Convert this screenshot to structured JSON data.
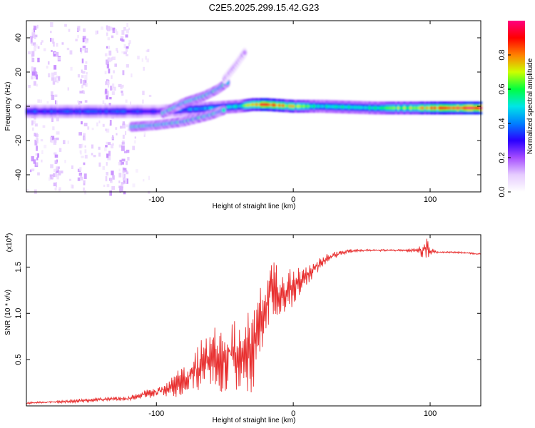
{
  "title": "C2E5.2025.299.15.42.G23",
  "colorbar": {
    "label": "Normalized spectral amplitude",
    "ticks": [
      0.0,
      0.2,
      0.4,
      0.6,
      0.8
    ],
    "tick_labels": [
      "0.0",
      "0.2",
      "0.4",
      "0.6",
      "0.8"
    ],
    "stops": [
      "#ffffff",
      "#e6ccff",
      "#a64dff",
      "#2a00ff",
      "#0080ff",
      "#00e6e6",
      "#00ff40",
      "#ccff00",
      "#ff8000",
      "#ff0000",
      "#ff0080"
    ]
  },
  "chart_data": [
    {
      "type": "heatmap",
      "name": "spectrogram",
      "title": "C2E5.2025.299.15.42.G23",
      "xlabel": "Height of straight line (km)",
      "ylabel": "Frequency (Hz)",
      "xlim": [
        -195,
        137
      ],
      "ylim": [
        -50,
        50
      ],
      "xticks": [
        -100,
        0,
        100
      ],
      "xtick_labels": [
        "-100",
        "0",
        "100"
      ],
      "yticks": [
        -40,
        -20,
        0,
        20,
        40
      ],
      "ytick_labels": [
        "-40",
        "-20",
        "0",
        "20",
        "40"
      ],
      "main_band": {
        "x": [
          -195,
          -120,
          -100,
          -80,
          -60,
          -40,
          -30,
          -20,
          0,
          20,
          60,
          100,
          137
        ],
        "y": [
          -3,
          -3,
          -3,
          -2,
          -1,
          0,
          1,
          1,
          0,
          0,
          -1,
          -1,
          -1
        ],
        "amplitude": [
          0.35,
          0.35,
          0.3,
          0.4,
          0.45,
          0.5,
          0.75,
          0.9,
          0.7,
          0.5,
          0.55,
          0.8,
          0.97
        ]
      },
      "branches": [
        {
          "x": [
            -118,
            -100,
            -80,
            -60,
            -50
          ],
          "y": [
            -12,
            -11,
            -9,
            -5,
            -2
          ],
          "amplitude": 0.45
        },
        {
          "x": [
            -95,
            -80,
            -65,
            -55,
            -48
          ],
          "y": [
            -4,
            2,
            6,
            10,
            14
          ],
          "amplitude": 0.45
        },
        {
          "x": [
            -50,
            -42,
            -35
          ],
          "y": [
            16,
            24,
            32
          ],
          "amplitude": 0.15
        }
      ],
      "noise_columns_x": [
        -190,
        -175,
        -155,
        -135,
        -125
      ]
    },
    {
      "type": "line",
      "name": "snr",
      "xlabel": "Height of straight line (km)",
      "ylabel": "SNR (10 * v/v)",
      "y_scale_note": "(x10",
      "y_scale_exponent": "4",
      "xlim": [
        -195,
        137
      ],
      "ylim": [
        0,
        1.85
      ],
      "xticks": [
        -100,
        0,
        100
      ],
      "xtick_labels": [
        "-100",
        "0",
        "100"
      ],
      "yticks": [
        0.5,
        1.0,
        1.5
      ],
      "ytick_labels": [
        "0.5",
        "1.0",
        "1.5"
      ],
      "series": [
        {
          "name": "SNR",
          "color": "#e83030",
          "x": [
            -195,
            -180,
            -160,
            -140,
            -120,
            -110,
            -100,
            -90,
            -80,
            -70,
            -60,
            -50,
            -40,
            -30,
            -25,
            -20,
            -15,
            -10,
            -5,
            0,
            5,
            10,
            20,
            30,
            40,
            50,
            60,
            70,
            80,
            90,
            95,
            98,
            100,
            105,
            110,
            120,
            137
          ],
          "y": [
            0.03,
            0.04,
            0.05,
            0.07,
            0.08,
            0.12,
            0.15,
            0.2,
            0.3,
            0.4,
            0.5,
            0.55,
            0.55,
            0.6,
            0.85,
            1.15,
            1.25,
            1.2,
            1.25,
            1.3,
            1.35,
            1.4,
            1.55,
            1.63,
            1.67,
            1.68,
            1.68,
            1.68,
            1.68,
            1.68,
            1.68,
            1.72,
            1.67,
            1.66,
            1.66,
            1.66,
            1.64
          ],
          "noise": [
            0.01,
            0.01,
            0.02,
            0.02,
            0.02,
            0.04,
            0.06,
            0.1,
            0.18,
            0.25,
            0.3,
            0.35,
            0.4,
            0.45,
            0.4,
            0.35,
            0.3,
            0.3,
            0.25,
            0.2,
            0.15,
            0.1,
            0.06,
            0.03,
            0.02,
            0.01,
            0.01,
            0.01,
            0.01,
            0.02,
            0.08,
            0.12,
            0.04,
            0.01,
            0.01,
            0.01,
            0.01
          ]
        }
      ]
    }
  ]
}
